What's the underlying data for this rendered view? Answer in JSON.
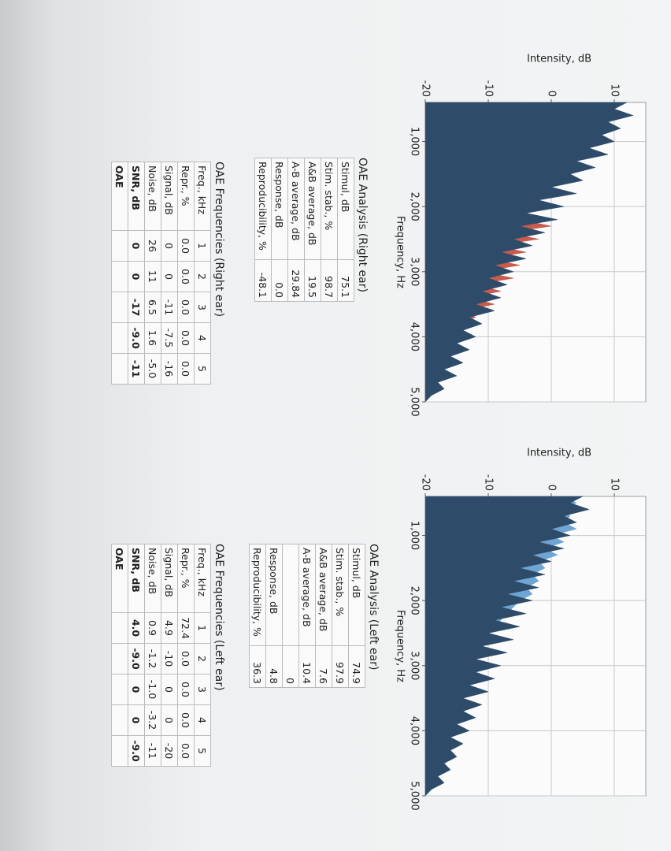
{
  "chart_data": [
    {
      "type": "area",
      "ylabel": "Intensity, dB",
      "xlabel": "Frequency, Hz",
      "x": [
        400,
        500,
        600,
        700,
        800,
        900,
        1000,
        1100,
        1200,
        1300,
        1400,
        1500,
        1600,
        1700,
        1800,
        1900,
        2000,
        2100,
        2200,
        2300,
        2400,
        2500,
        2600,
        2700,
        2800,
        2900,
        3000,
        3100,
        3200,
        3300,
        3400,
        3500,
        3600,
        3700,
        3800,
        3900,
        4000,
        4100,
        4200,
        4300,
        4400,
        4500,
        4600,
        4700,
        4800,
        4900,
        5000
      ],
      "xlim": [
        400,
        5000
      ],
      "xticks": [
        {
          "value": 1000,
          "label": "1,000"
        },
        {
          "value": 2000,
          "label": "2,000"
        },
        {
          "value": 3000,
          "label": "3,000"
        },
        {
          "value": 4000,
          "label": "4,000"
        },
        {
          "value": 5000,
          "label": "5,000"
        }
      ],
      "ylim": [
        -20,
        15
      ],
      "yticks": [
        -20,
        -10,
        0,
        10
      ],
      "grid": true,
      "series": [
        {
          "color": "#c95a4c",
          "values": [
            5,
            4,
            6,
            3,
            5,
            2,
            4,
            1,
            3,
            0,
            2,
            -2,
            1,
            -4,
            0,
            -5,
            -3,
            -6,
            -5,
            0,
            -7,
            -2,
            -9,
            -4,
            -10,
            -5,
            -11,
            -6,
            -12,
            -8,
            -13,
            -9,
            -14,
            -12,
            -15,
            -14,
            -16,
            -15,
            -17,
            -16,
            -18,
            -18,
            -19,
            -19,
            -20,
            -20,
            -20
          ]
        },
        {
          "color": "#2e4c6a",
          "values": [
            12,
            10,
            13,
            9,
            11,
            8,
            10,
            6,
            9,
            4,
            7,
            3,
            5,
            0,
            4,
            -2,
            2,
            -4,
            1,
            -5,
            -1,
            -6,
            -3,
            -8,
            -4,
            -9,
            -6,
            -10,
            -7,
            -11,
            -8,
            -12,
            -9,
            -13,
            -11,
            -14,
            -12,
            -15,
            -13,
            -16,
            -14,
            -17,
            -15,
            -18,
            -17,
            -19,
            -20
          ]
        }
      ]
    },
    {
      "type": "area",
      "ylabel": "Intensity, dB",
      "xlabel": "Frequency, Hz",
      "x": [
        400,
        500,
        600,
        700,
        800,
        900,
        1000,
        1100,
        1200,
        1300,
        1400,
        1500,
        1600,
        1700,
        1800,
        1900,
        2000,
        2100,
        2200,
        2300,
        2400,
        2500,
        2600,
        2700,
        2800,
        2900,
        3000,
        3100,
        3200,
        3300,
        3400,
        3500,
        3600,
        3700,
        3800,
        3900,
        4000,
        4100,
        4200,
        4300,
        4400,
        4500,
        4600,
        4700,
        4800,
        4900,
        5000
      ],
      "xlim": [
        400,
        5000
      ],
      "xticks": [
        {
          "value": 1000,
          "label": "1,000"
        },
        {
          "value": 2000,
          "label": "2,000"
        },
        {
          "value": 3000,
          "label": "3,000"
        },
        {
          "value": 4000,
          "label": "4,000"
        },
        {
          "value": 5000,
          "label": "5,000"
        }
      ],
      "ylim": [
        -20,
        15
      ],
      "yticks": [
        -20,
        -10,
        0,
        10
      ],
      "grid": true,
      "series": [
        {
          "color": "#6ea5d4",
          "values": [
            2,
            4,
            1,
            3,
            2,
            4,
            0,
            2,
            -1,
            1,
            -2,
            -1,
            -3,
            -2,
            -4,
            -3,
            -5,
            -6,
            -7,
            -8,
            -9,
            -10,
            -11,
            -12,
            -12,
            -13,
            -13,
            -14,
            -14,
            -15,
            -15,
            -16,
            -16,
            -17,
            -17,
            -17,
            -18,
            -18,
            -18,
            -19,
            -19,
            -19,
            -20,
            -20,
            -20,
            -20,
            -20
          ]
        },
        {
          "color": "#2e4c6a",
          "values": [
            5,
            3,
            6,
            2,
            4,
            0,
            3,
            -2,
            2,
            -3,
            0,
            -5,
            -1,
            -6,
            -2,
            -7,
            -3,
            -8,
            -4,
            -9,
            -5,
            -10,
            -6,
            -11,
            -7,
            -12,
            -8,
            -12,
            -9,
            -13,
            -10,
            -14,
            -11,
            -14,
            -12,
            -15,
            -13,
            -16,
            -14,
            -16,
            -15,
            -17,
            -16,
            -18,
            -17,
            -19,
            -20
          ]
        }
      ]
    }
  ],
  "right_ear": {
    "analysis": {
      "title": "OAE Analysis (Right ear)",
      "rows": [
        [
          "Stimul, dB",
          "75.1"
        ],
        [
          "Stim. stab., %",
          "98.7"
        ],
        [
          "A&B average, dB",
          "19.5"
        ],
        [
          "A-B average, dB",
          "29.84"
        ],
        [
          "Response, dB",
          "0.0"
        ],
        [
          "Reproducibility, %",
          "-48.1"
        ]
      ]
    },
    "frequencies": {
      "title": "OAE Frequencies (Right ear)",
      "rows": [
        [
          "Freq., kHz",
          "1",
          "2",
          "3",
          "4",
          "5"
        ],
        [
          "Repr., %",
          "0.0",
          "0.0",
          "0.0",
          "0.0",
          "0.0"
        ],
        [
          "Signal, dB",
          "0",
          "0",
          "-11",
          "-7.5",
          "-16"
        ],
        [
          "Noise, dB",
          "26",
          "11",
          "6.5",
          "1.6",
          "-5.0"
        ],
        [
          "SNR, dB",
          "0",
          "0",
          "-17",
          "-9.0",
          "-11"
        ],
        [
          "OAE"
        ]
      ]
    }
  },
  "left_ear": {
    "analysis": {
      "title": "OAE Analysis (Left ear)",
      "rows": [
        [
          "Stimul, dB",
          "74.9"
        ],
        [
          "Stim. stab., %",
          "97.9"
        ],
        [
          "A&B average, dB",
          "7.6"
        ],
        [
          "A-B average, dB",
          "10.4"
        ],
        [
          null,
          "0"
        ],
        [
          "Response, dB",
          "4.8"
        ],
        [
          "Reproducibility, %",
          "36.3"
        ]
      ]
    },
    "frequencies": {
      "title": "OAE Frequencies (Left ear)",
      "rows": [
        [
          "Freq., kHz",
          "1",
          "2",
          "3",
          "4",
          "5"
        ],
        [
          "Repr., %",
          "72.4",
          "0.0",
          "0.0",
          "0.0",
          "0.0"
        ],
        [
          "Signal, dB",
          "4.9",
          "-10",
          "0",
          "0",
          "-20"
        ],
        [
          "Noise, dB",
          "0.9",
          "-1.2",
          "-1.0",
          "-3.2",
          "-11"
        ],
        [
          "SNR, dB",
          "4.0",
          "-9.0",
          "0",
          "0",
          "-9.0"
        ],
        [
          "OAE"
        ]
      ]
    }
  }
}
